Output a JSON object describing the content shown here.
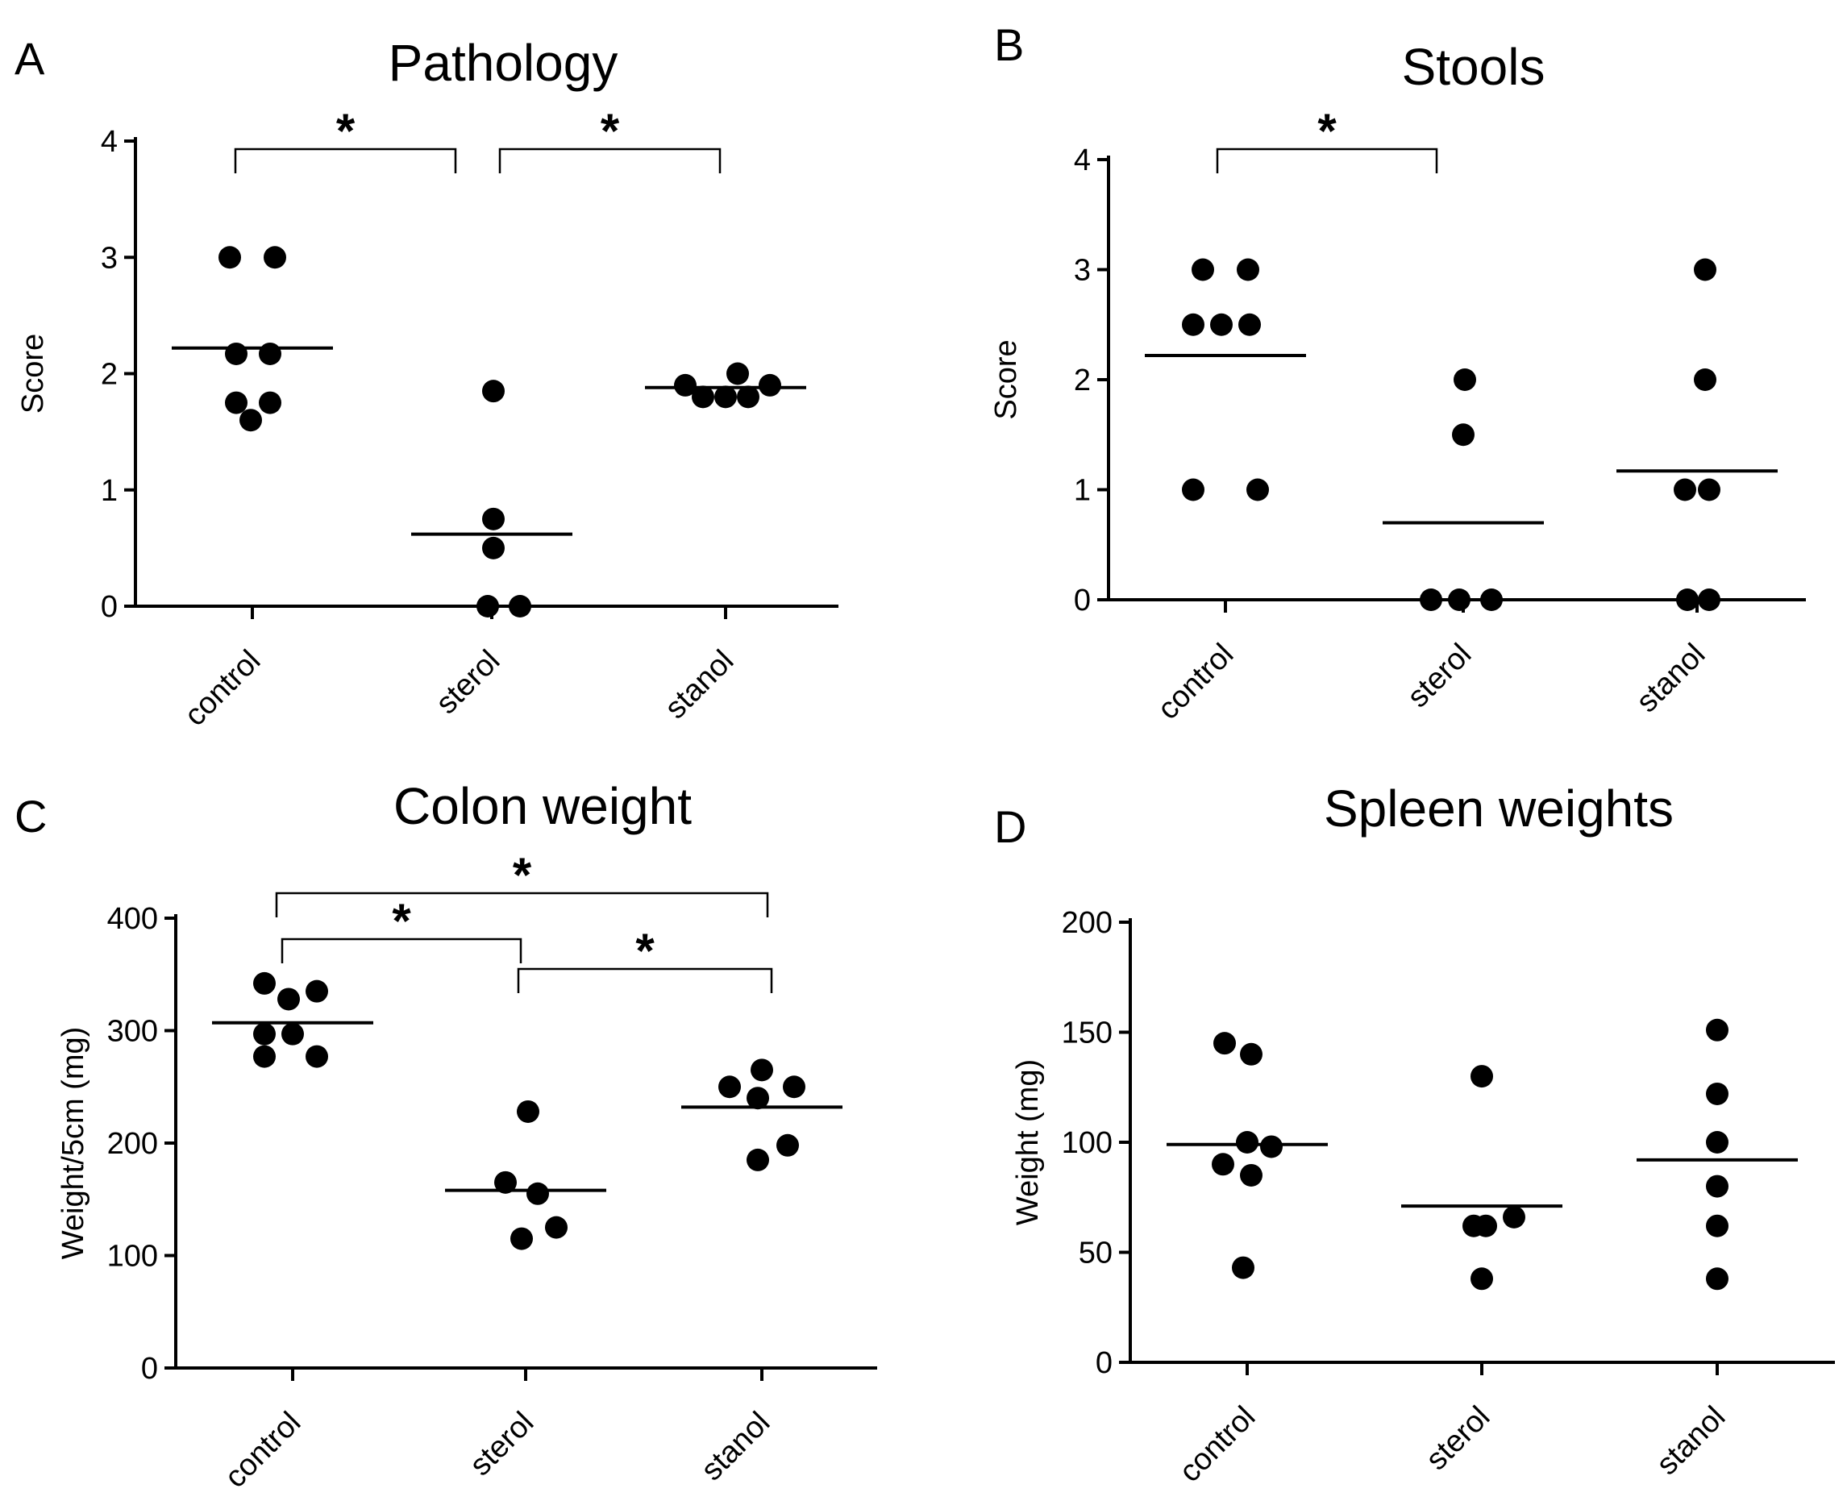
{
  "chart_data": [
    {
      "type": "scatter",
      "panel": "A",
      "title": "Pathology",
      "ylabel": "Score",
      "categories": [
        "control",
        "sterol",
        "stanol"
      ],
      "ylim": [
        0,
        4
      ],
      "yticks": [
        "0",
        "1",
        "2",
        "3",
        "4"
      ],
      "points": [
        [
          3.0,
          3.0,
          2.17,
          2.17,
          1.75,
          1.75,
          1.6
        ],
        [
          1.85,
          0.75,
          0.5,
          0.0,
          0.0
        ],
        [
          1.9,
          1.8,
          1.8,
          1.8,
          2.0,
          1.9
        ]
      ],
      "means": [
        2.22,
        0.62,
        1.88
      ],
      "significance": [
        {
          "from": "control",
          "to": "sterol",
          "label": "*"
        },
        {
          "from": "sterol",
          "to": "stanol",
          "label": "*"
        }
      ]
    },
    {
      "type": "scatter",
      "panel": "B",
      "title": "Stools",
      "ylabel": "Score",
      "categories": [
        "control",
        "sterol",
        "stanol"
      ],
      "ylim": [
        0,
        4
      ],
      "yticks": [
        "0",
        "1",
        "2",
        "3",
        "4"
      ],
      "points": [
        [
          3.0,
          3.0,
          2.5,
          2.5,
          2.5,
          1.0,
          1.0
        ],
        [
          2.0,
          1.5,
          0.0,
          0.0,
          0.0
        ],
        [
          3.0,
          2.0,
          1.0,
          1.0,
          0.0,
          0.0
        ]
      ],
      "means": [
        2.22,
        0.7,
        1.17
      ],
      "significance": [
        {
          "from": "control",
          "to": "sterol",
          "label": "*"
        }
      ]
    },
    {
      "type": "scatter",
      "panel": "C",
      "title": "Colon weight",
      "ylabel": "Weight/5cm (mg)",
      "categories": [
        "control",
        "sterol",
        "stanol"
      ],
      "ylim": [
        0,
        400
      ],
      "yticks": [
        "0",
        "100",
        "200",
        "300",
        "400"
      ],
      "points": [
        [
          342,
          335,
          328,
          297,
          297,
          277,
          277
        ],
        [
          228,
          165,
          155,
          125,
          115
        ],
        [
          265,
          250,
          250,
          240,
          198,
          185
        ]
      ],
      "means": [
        307,
        158,
        232
      ],
      "significance": [
        {
          "from": "control",
          "to": "stanol",
          "label": "*"
        },
        {
          "from": "control",
          "to": "sterol",
          "label": "*"
        },
        {
          "from": "sterol",
          "to": "stanol",
          "label": "*"
        }
      ]
    },
    {
      "type": "scatter",
      "panel": "D",
      "title": "Spleen weights",
      "ylabel": "Weight (mg)",
      "categories": [
        "control",
        "sterol",
        "stanol"
      ],
      "ylim": [
        0,
        200
      ],
      "yticks": [
        "0",
        "50",
        "100",
        "150",
        "200"
      ],
      "points": [
        [
          145,
          140,
          100,
          98,
          90,
          85,
          43
        ],
        [
          130,
          66,
          62,
          62,
          38
        ],
        [
          151,
          122,
          100,
          80,
          62,
          38
        ]
      ],
      "means": [
        99,
        71,
        92
      ],
      "significance": []
    }
  ]
}
